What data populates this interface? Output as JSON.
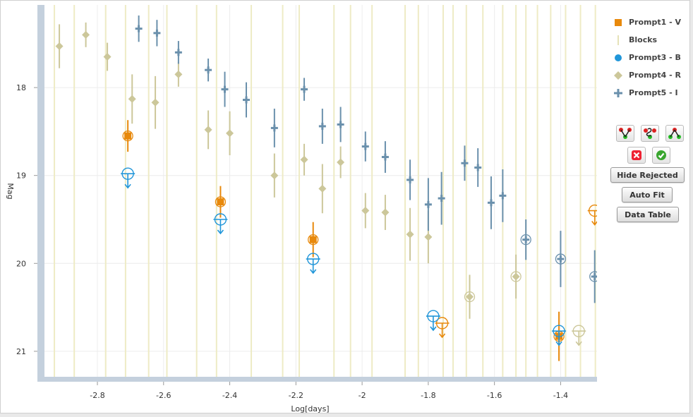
{
  "chart_data": {
    "type": "scatter",
    "xlabel": "Log[days]",
    "ylabel": "Mag",
    "xlim": [
      -2.96,
      -1.29
    ],
    "ylim": [
      17.06,
      21.29
    ],
    "y_inverted": true,
    "xticks": [
      -2.8,
      -2.6,
      -2.4,
      -2.2,
      -2,
      -1.8,
      -1.6,
      -1.4
    ],
    "yticks": [
      18,
      19,
      20,
      21
    ],
    "grid": true,
    "blocks_x": [
      -2.93,
      -2.87,
      -2.775,
      -2.715,
      -2.645,
      -2.59,
      -2.5,
      -2.44,
      -2.335,
      -2.24,
      -2.19,
      -2.085,
      -2.035,
      -1.97,
      -1.87,
      -1.83,
      -1.755,
      -1.725,
      -1.685,
      -1.635,
      -1.575,
      -1.535,
      -1.505,
      -1.47,
      -1.43,
      -1.385,
      -1.34,
      -1.295
    ],
    "series": [
      {
        "name": "Prompt1 - V",
        "color": "#e8890c",
        "marker": "square",
        "points": [
          {
            "x": -2.708,
            "y": 18.55,
            "err": 0.18,
            "rejected": true
          },
          {
            "x": -2.428,
            "y": 19.3,
            "err": 0.18,
            "rejected": true
          },
          {
            "x": -2.148,
            "y": 19.73,
            "err": 0.2,
            "rejected": true
          },
          {
            "x": -1.405,
            "y": 20.83,
            "err": 0.28,
            "rejected": true
          }
        ],
        "upper_limits": [
          {
            "x": -1.758,
            "y": 20.68
          },
          {
            "x": -1.297,
            "y": 19.4
          }
        ]
      },
      {
        "name": "Blocks",
        "color": "#eeebc5",
        "marker": "vline"
      },
      {
        "name": "Prompt3 - B",
        "color": "#2196d9",
        "marker": "circle",
        "upper_limits": [
          {
            "x": -2.708,
            "y": 18.98
          },
          {
            "x": -2.428,
            "y": 19.5
          },
          {
            "x": -2.148,
            "y": 19.95
          },
          {
            "x": -1.785,
            "y": 20.6
          },
          {
            "x": -1.405,
            "y": 20.77
          }
        ]
      },
      {
        "name": "Prompt4 - R",
        "color": "#ccc79a",
        "marker": "diamond",
        "points": [
          {
            "x": -2.915,
            "y": 17.53,
            "err": 0.25
          },
          {
            "x": -2.835,
            "y": 17.4,
            "err": 0.14
          },
          {
            "x": -2.77,
            "y": 17.65,
            "err": 0.16
          },
          {
            "x": -2.695,
            "y": 18.13,
            "err": 0.28
          },
          {
            "x": -2.625,
            "y": 18.17,
            "err": 0.3
          },
          {
            "x": -2.555,
            "y": 17.85,
            "err": 0.14
          },
          {
            "x": -2.465,
            "y": 18.48,
            "err": 0.22
          },
          {
            "x": -2.4,
            "y": 18.52,
            "err": 0.25
          },
          {
            "x": -2.265,
            "y": 19,
            "err": 0.25
          },
          {
            "x": -2.175,
            "y": 18.82,
            "err": 0.18
          },
          {
            "x": -2.12,
            "y": 19.15,
            "err": 0.28
          },
          {
            "x": -2.065,
            "y": 18.85,
            "err": 0.18
          },
          {
            "x": -1.99,
            "y": 19.4,
            "err": 0.2
          },
          {
            "x": -1.93,
            "y": 19.42,
            "err": 0.2
          },
          {
            "x": -1.855,
            "y": 19.67,
            "err": 0.3
          },
          {
            "x": -1.8,
            "y": 19.7,
            "err": 0.3
          },
          {
            "x": -1.675,
            "y": 20.38,
            "err": 0.25,
            "rejected": true
          },
          {
            "x": -1.535,
            "y": 20.15,
            "err": 0.25,
            "rejected": true
          }
        ],
        "upper_limits": [
          {
            "x": -1.345,
            "y": 20.77
          }
        ]
      },
      {
        "name": "Prompt5 - I",
        "color": "#6a90ac",
        "marker": "plus",
        "points": [
          {
            "x": -2.675,
            "y": 17.33,
            "err": 0.15
          },
          {
            "x": -2.62,
            "y": 17.38,
            "err": 0.15
          },
          {
            "x": -2.555,
            "y": 17.6,
            "err": 0.13
          },
          {
            "x": -2.465,
            "y": 17.8,
            "err": 0.13
          },
          {
            "x": -2.415,
            "y": 18.02,
            "err": 0.2
          },
          {
            "x": -2.35,
            "y": 18.14,
            "err": 0.2
          },
          {
            "x": -2.265,
            "y": 18.46,
            "err": 0.22
          },
          {
            "x": -2.175,
            "y": 18.02,
            "err": 0.13
          },
          {
            "x": -2.12,
            "y": 18.44,
            "err": 0.2
          },
          {
            "x": -2.065,
            "y": 18.42,
            "err": 0.2
          },
          {
            "x": -1.99,
            "y": 18.67,
            "err": 0.17
          },
          {
            "x": -1.93,
            "y": 18.79,
            "err": 0.18
          },
          {
            "x": -1.855,
            "y": 19.05,
            "err": 0.23
          },
          {
            "x": -1.8,
            "y": 19.33,
            "err": 0.3
          },
          {
            "x": -1.76,
            "y": 19.26,
            "err": 0.3
          },
          {
            "x": -1.69,
            "y": 18.86,
            "err": 0.2
          },
          {
            "x": -1.65,
            "y": 18.91,
            "err": 0.22
          },
          {
            "x": -1.61,
            "y": 19.31,
            "err": 0.3
          },
          {
            "x": -1.575,
            "y": 19.23,
            "err": 0.3
          },
          {
            "x": -1.505,
            "y": 19.73,
            "err": 0.23,
            "rejected": true
          },
          {
            "x": -1.4,
            "y": 19.95,
            "err": 0.32,
            "rejected": true
          },
          {
            "x": -1.297,
            "y": 20.15,
            "err": 0.3,
            "rejected": true
          }
        ]
      }
    ]
  },
  "legend": [
    {
      "label": "Prompt1 - V",
      "icon": "square-icon",
      "color": "#e8890c"
    },
    {
      "label": "Blocks",
      "icon": "vline-icon",
      "color": "#eeebc5"
    },
    {
      "label": "Prompt3 - B",
      "icon": "circle-icon",
      "color": "#2196d9"
    },
    {
      "label": "Prompt4 - R",
      "icon": "diamond-icon",
      "color": "#ccc79a"
    },
    {
      "label": "Prompt5 - I",
      "icon": "plus-icon",
      "color": "#6a90ac"
    }
  ],
  "tools": {
    "select_icon": "select-points-icon",
    "lasso_icon": "lasso-select-icon",
    "connect_icon": "connect-points-icon",
    "reject_icon": "reject-x-icon",
    "accept_icon": "accept-check-icon"
  },
  "buttons": {
    "hide_rejected": "Hide Rejected",
    "auto_fit": "Auto Fit",
    "data_table": "Data Table"
  }
}
